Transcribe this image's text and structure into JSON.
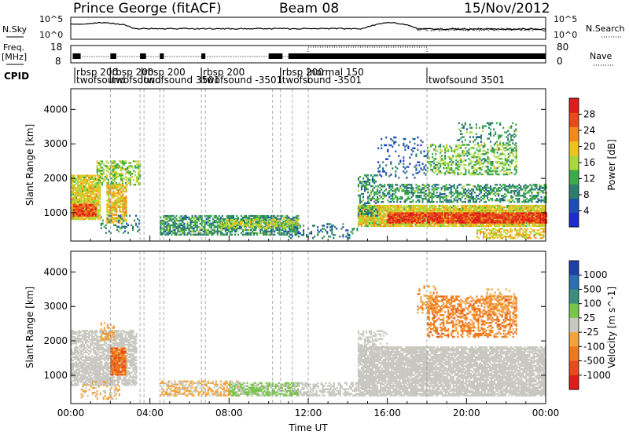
{
  "header": {
    "station": "Prince George (fitACF)",
    "beam": "Beam 08",
    "date": "15/Nov/2012"
  },
  "noise_panel": {
    "left_label": "N.Sky",
    "right_label": "N.Search",
    "left_ticks": [
      "10^5",
      "10^0"
    ],
    "right_ticks": [
      "10^5",
      "10^0"
    ]
  },
  "freq_panel": {
    "left_label_line1": "Freq.",
    "left_label_line2": "[MHz]",
    "right_label": "Nave",
    "left_ticks": [
      "18",
      "8"
    ],
    "right_ticks": [
      "80",
      "0"
    ]
  },
  "cpid": {
    "label": "CPID",
    "entries": [
      {
        "text": "rbsp 200",
        "x_hr": 0.2,
        "row": 1
      },
      {
        "text": "twofsound",
        "x_hr": 0.2,
        "row": 2
      },
      {
        "text": "rbsp 200",
        "x_hr": 2.0,
        "row": 1
      },
      {
        "text": "twofsound",
        "x_hr": 2.0,
        "row": 2
      },
      {
        "text": "rbsp 200",
        "x_hr": 3.6,
        "row": 1
      },
      {
        "text": "twofsound 3501",
        "x_hr": 3.6,
        "row": 2
      },
      {
        "text": "rbsp 200",
        "x_hr": 6.6,
        "row": 1
      },
      {
        "text": "twofsound -3501",
        "x_hr": 6.6,
        "row": 2
      },
      {
        "text": "rbsp 200",
        "x_hr": 10.6,
        "row": 1
      },
      {
        "text": "twofsound -3501",
        "x_hr": 10.6,
        "row": 2
      },
      {
        "text": "normal 150",
        "x_hr": 12.0,
        "row": 1
      },
      {
        "text": "twofsound 3501",
        "x_hr": 18.0,
        "row": 2
      }
    ]
  },
  "colors": {
    "power": [
      "#1f2ad0",
      "#1c4fb5",
      "#2e7d6e",
      "#3aaa4a",
      "#a8d83a",
      "#f0c21c",
      "#f18a1a",
      "#ea4a1a",
      "#e01b1b"
    ],
    "velocity": [
      "#1d3fa8",
      "#2a6fb2",
      "#3b8e7c",
      "#77c64a",
      "#c8c8c0",
      "#f2a43a",
      "#ee7a1c",
      "#e84a1c",
      "#e01b1b"
    ],
    "ground": "#c8c8c0"
  },
  "chart_data": [
    {
      "type": "heatmap",
      "name": "Power",
      "xlabel": "Time UT",
      "ylabel": "Slant Range [km]",
      "colorbar_label": "Power [dB]",
      "x_ticks": [
        "00:00",
        "04:00",
        "08:00",
        "12:00",
        "16:00",
        "20:00",
        "00:00"
      ],
      "xlim_hours": [
        0,
        24
      ],
      "ylim_km": [
        180,
        4600
      ],
      "y_ticks": [
        1000,
        2000,
        3000,
        4000
      ],
      "colorbar_ticks": [
        4,
        8,
        12,
        16,
        20,
        24,
        28
      ],
      "colorbar_range": [
        0,
        30
      ],
      "regions": [
        {
          "t0": 0.0,
          "t1": 1.5,
          "r0": 800,
          "r1": 2100,
          "v": 17,
          "p": 0.85
        },
        {
          "t0": 0.1,
          "t1": 1.3,
          "r0": 900,
          "r1": 1250,
          "v": 26,
          "p": 0.9
        },
        {
          "t0": 1.3,
          "t1": 3.5,
          "r0": 1800,
          "r1": 2500,
          "v": 14,
          "p": 0.5
        },
        {
          "t0": 1.8,
          "t1": 2.8,
          "r0": 700,
          "r1": 1800,
          "v": 18,
          "p": 0.75
        },
        {
          "t0": 1.5,
          "t1": 3.5,
          "r0": 400,
          "r1": 900,
          "v": 8,
          "p": 0.2
        },
        {
          "t0": 4.5,
          "t1": 11.5,
          "r0": 350,
          "r1": 900,
          "v": 10,
          "p": 0.65
        },
        {
          "t0": 7.5,
          "t1": 11.5,
          "r0": 550,
          "r1": 800,
          "v": 16,
          "p": 0.55
        },
        {
          "t0": 11.0,
          "t1": 14.5,
          "r0": 250,
          "r1": 700,
          "v": 8,
          "p": 0.2
        },
        {
          "t0": 14.5,
          "t1": 24.0,
          "r0": 600,
          "r1": 1200,
          "v": 17,
          "p": 0.9
        },
        {
          "t0": 16.0,
          "t1": 24.0,
          "r0": 700,
          "r1": 1000,
          "v": 26,
          "p": 0.9
        },
        {
          "t0": 15.5,
          "t1": 24.0,
          "r0": 1300,
          "r1": 1800,
          "v": 10,
          "p": 0.5
        },
        {
          "t0": 14.5,
          "t1": 15.5,
          "r0": 900,
          "r1": 2100,
          "v": 10,
          "p": 0.5
        },
        {
          "t0": 18.0,
          "t1": 22.5,
          "r0": 2100,
          "r1": 3000,
          "v": 13,
          "p": 0.4
        },
        {
          "t0": 15.5,
          "t1": 18.0,
          "r0": 2000,
          "r1": 3200,
          "v": 6,
          "p": 0.15
        },
        {
          "t0": 19.5,
          "t1": 22.5,
          "r0": 3000,
          "r1": 3600,
          "v": 10,
          "p": 0.2
        },
        {
          "t0": 20.5,
          "t1": 24.0,
          "r0": 250,
          "r1": 550,
          "v": 18,
          "p": 0.5
        }
      ]
    },
    {
      "type": "heatmap",
      "name": "Velocity",
      "xlabel": "Time UT",
      "ylabel": "Slant Range [km]",
      "colorbar_label": "Velocity [m s^-1]",
      "x_ticks": [
        "00:00",
        "04:00",
        "08:00",
        "12:00",
        "16:00",
        "20:00",
        "00:00"
      ],
      "xlim_hours": [
        0,
        24
      ],
      "ylim_km": [
        180,
        4600
      ],
      "y_ticks": [
        1000,
        2000,
        3000,
        4000
      ],
      "colorbar_ticks": [
        "1000",
        "500",
        "100",
        "25",
        "-25",
        "-100",
        "-500",
        "-1000"
      ],
      "colorbar_range": [
        -1200,
        1200
      ],
      "regions": [
        {
          "t0": 0.0,
          "t1": 3.3,
          "r0": 700,
          "r1": 2300,
          "v": 0,
          "p": 0.7,
          "g": 1
        },
        {
          "t0": 0.3,
          "t1": 1.5,
          "r0": 900,
          "r1": 1300,
          "v": -50,
          "p": 0.5
        },
        {
          "t0": 1.5,
          "t1": 2.2,
          "r0": 2000,
          "r1": 2500,
          "v": -300,
          "p": 0.4
        },
        {
          "t0": 2.0,
          "t1": 2.8,
          "r0": 1000,
          "r1": 1800,
          "v": -600,
          "p": 0.9
        },
        {
          "t0": 0.5,
          "t1": 2.5,
          "r0": 300,
          "r1": 800,
          "v": -150,
          "p": 0.25
        },
        {
          "t0": 4.5,
          "t1": 8.5,
          "r0": 400,
          "r1": 850,
          "v": -150,
          "p": 0.55
        },
        {
          "t0": 8.0,
          "t1": 11.5,
          "r0": 400,
          "r1": 800,
          "v": 150,
          "p": 0.7
        },
        {
          "t0": 11.5,
          "t1": 14.5,
          "r0": 400,
          "r1": 800,
          "v": 0,
          "p": 0.5,
          "g": 1
        },
        {
          "t0": 14.5,
          "t1": 24.0,
          "r0": 400,
          "r1": 1800,
          "v": 0,
          "p": 0.85,
          "g": 1
        },
        {
          "t0": 14.5,
          "t1": 16.0,
          "r0": 1500,
          "r1": 2300,
          "v": 0,
          "p": 0.4,
          "g": 1
        },
        {
          "t0": 18.0,
          "t1": 22.5,
          "r0": 2100,
          "r1": 3300,
          "v": -500,
          "p": 0.45
        },
        {
          "t0": 17.5,
          "t1": 18.5,
          "r0": 2800,
          "r1": 3600,
          "v": -400,
          "p": 0.3
        },
        {
          "t0": 21.0,
          "t1": 22.5,
          "r0": 2800,
          "r1": 3500,
          "v": -200,
          "p": 0.2
        }
      ]
    }
  ]
}
